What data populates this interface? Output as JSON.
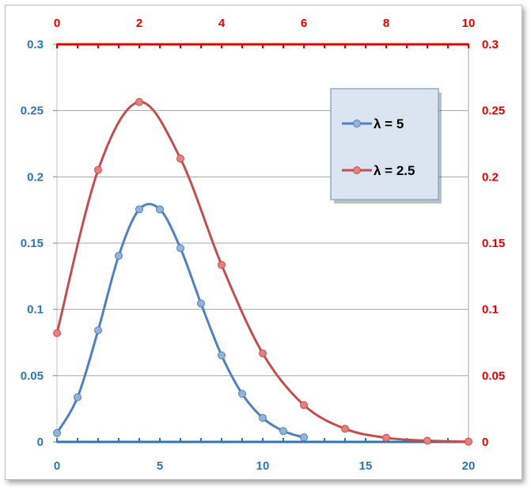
{
  "chart_data": {
    "type": "line",
    "title": "",
    "legend_position": "top-right",
    "grid": true,
    "axes": {
      "primary": {
        "x_ticks": [
          "0",
          "5",
          "10",
          "15",
          "20"
        ],
        "y_ticks": [
          "0",
          "0.05",
          "0.1",
          "0.15",
          "0.2",
          "0.25",
          "0.3"
        ],
        "xlim": [
          0,
          20
        ],
        "ylim": [
          0,
          0.3
        ],
        "color": "#2E75B6"
      },
      "secondary": {
        "x_ticks": [
          "0",
          "2",
          "4",
          "6",
          "8",
          "10"
        ],
        "y_ticks": [
          "0",
          "0.05",
          "0.1",
          "0.15",
          "0.2",
          "0.25",
          "0.3"
        ],
        "xlim": [
          0,
          10
        ],
        "ylim": [
          0,
          0.3
        ],
        "color": "#E00000"
      }
    },
    "series": [
      {
        "name": "λ =  5",
        "axis": "primary",
        "color": "#4F81BD",
        "marker_color": "#95B3D7",
        "x": [
          0,
          1,
          2,
          3,
          4,
          5,
          6,
          7,
          8,
          9,
          10,
          11,
          12
        ],
        "y": [
          0.0067,
          0.0337,
          0.0842,
          0.1404,
          0.1755,
          0.1755,
          0.1462,
          0.1044,
          0.0653,
          0.0363,
          0.0181,
          0.0082,
          0.0034
        ]
      },
      {
        "name": "λ =  2.5",
        "axis": "secondary",
        "color": "#C0504D",
        "marker_color": "#E6807E",
        "x": [
          0,
          1,
          2,
          3,
          4,
          5,
          6,
          7,
          8,
          9,
          10
        ],
        "y": [
          0.0821,
          0.2052,
          0.2565,
          0.2138,
          0.1336,
          0.0668,
          0.0278,
          0.0099,
          0.0031,
          0.0009,
          0.0002
        ]
      }
    ]
  }
}
